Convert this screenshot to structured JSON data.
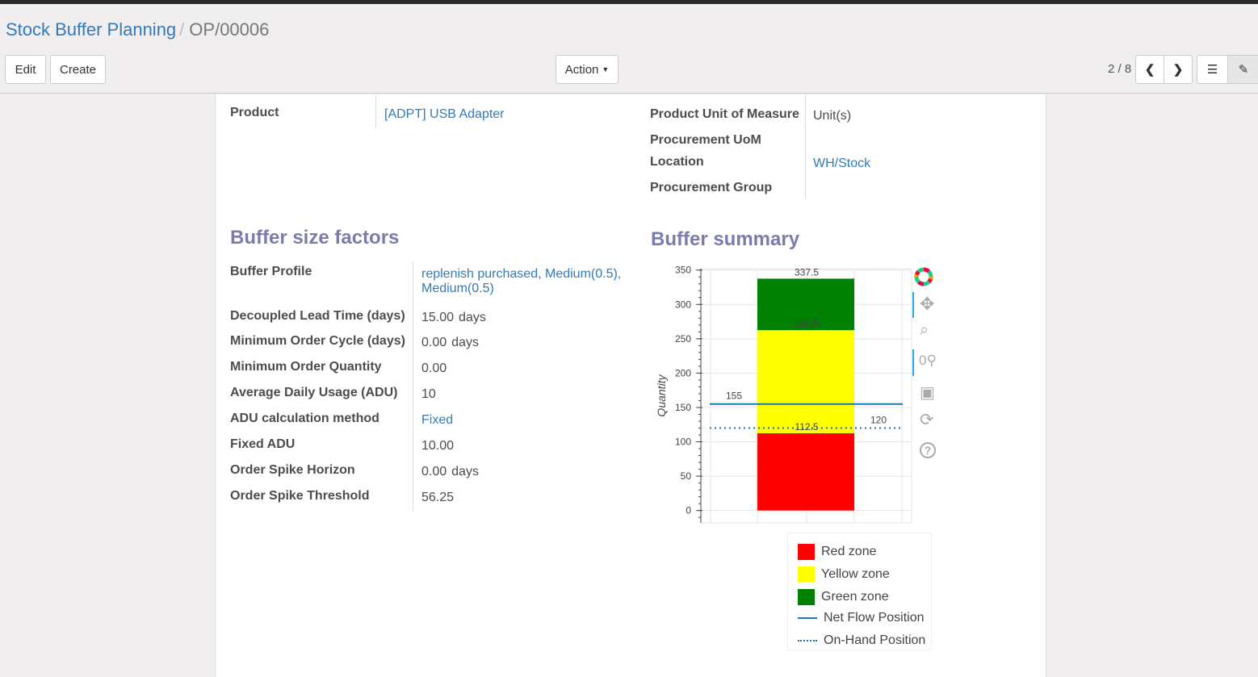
{
  "breadcrumb": {
    "parent": "Stock Buffer Planning",
    "current": "OP/00006"
  },
  "toolbar": {
    "edit": "Edit",
    "create": "Create",
    "action": "Action",
    "pager": "2 / 8"
  },
  "main": {
    "left_fields": [
      {
        "label": "Product",
        "value": "[ADPT] USB Adapter",
        "link": true
      }
    ],
    "right_fields": [
      {
        "label": "Product Unit of Measure",
        "value": "Unit(s)"
      },
      {
        "label": "Procurement UoM",
        "value": ""
      },
      {
        "label": "Location",
        "value": "WH/Stock"
      },
      {
        "label": "Procurement Group",
        "value": ""
      }
    ],
    "factors_title": "Buffer size factors",
    "summary_title": "Buffer summary",
    "factors": [
      {
        "label": "Buffer Profile",
        "value": "replenish purchased, Medium(0.5),",
        "value2": "Medium(0.5)",
        "unit": ""
      },
      {
        "label": "Decoupled Lead Time (days)",
        "value": "15.00",
        "unit": "days"
      },
      {
        "label": "Minimum Order Cycle (days)",
        "value": "0.00",
        "unit": "days"
      },
      {
        "label": "Minimum Order Quantity",
        "value": "0.00",
        "unit": ""
      },
      {
        "label": "Average Daily Usage (ADU)",
        "value": "10",
        "unit": ""
      },
      {
        "label": "ADU calculation method",
        "value": "Fixed",
        "unit": ""
      },
      {
        "label": "Fixed ADU",
        "value": "10.00",
        "unit": ""
      },
      {
        "label": "Order Spike Horizon",
        "value": "0.00",
        "unit": "days"
      },
      {
        "label": "Order Spike Threshold",
        "value": "56.25",
        "unit": ""
      }
    ]
  },
  "chart_data": {
    "type": "bar",
    "ylabel": "Quantity",
    "ylim": [
      -18,
      352
    ],
    "yticks": [
      0,
      50,
      100,
      150,
      200,
      250,
      300,
      350
    ],
    "grid": true,
    "stacked_zones": [
      {
        "name": "Red zone",
        "from": 0,
        "to": 112.5,
        "color": "#ff0000",
        "label": "112.5"
      },
      {
        "name": "Yellow zone",
        "from": 112.5,
        "to": 262.5,
        "color": "#ffff00",
        "label": "262.5"
      },
      {
        "name": "Green zone",
        "from": 262.5,
        "to": 337.5,
        "color": "#008000",
        "label": "337.5"
      }
    ],
    "lines": [
      {
        "name": "Net Flow Position",
        "value": 155,
        "label": "155",
        "style": "solid",
        "color": "#1f77b4"
      },
      {
        "name": "On-Hand Position",
        "value": 120,
        "label": "120",
        "style": "dotted",
        "color": "#1f77b4"
      }
    ],
    "legend_position": "bottom-right"
  }
}
